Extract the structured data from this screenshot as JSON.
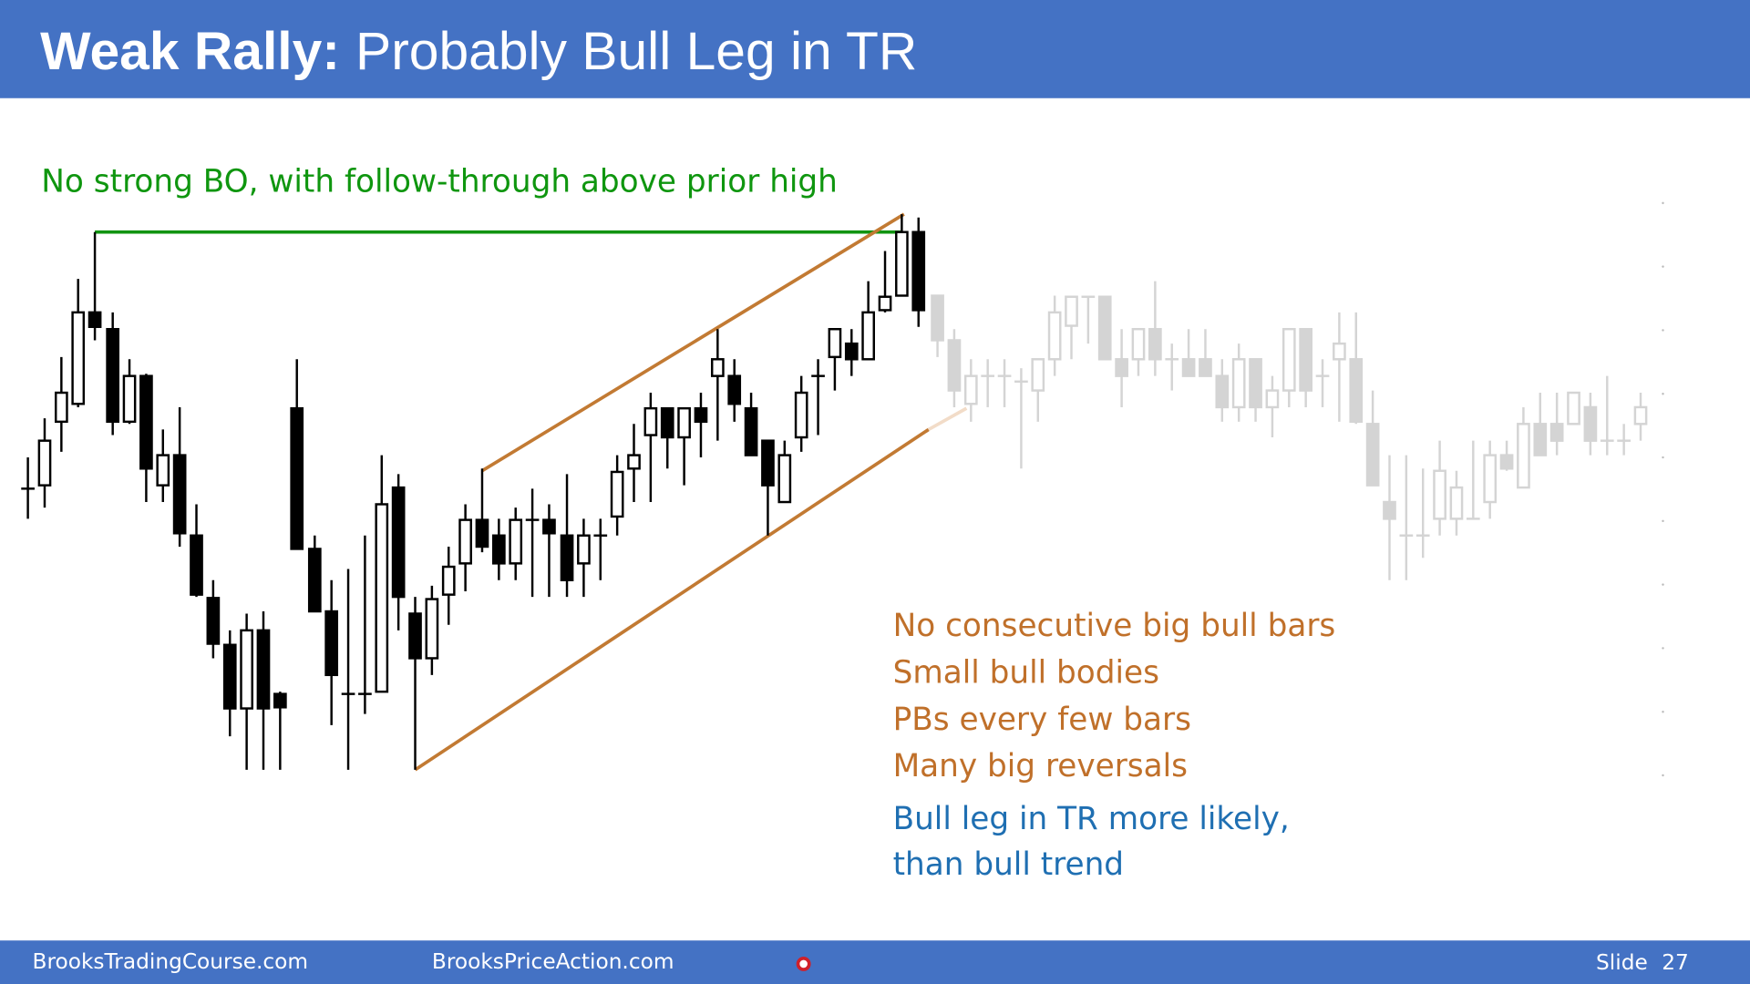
{
  "header": {
    "title_bold": "Weak Rally:",
    "title_rest": "Probably Bull Leg in TR"
  },
  "annotation": "No strong BO, with follow-through above prior high",
  "bullets": [
    "No consecutive big bull bars",
    "Small bull bodies",
    "PBs every few bars",
    "Many big reversals"
  ],
  "conclusion": [
    "Bull leg in TR more likely,",
    "than bull trend"
  ],
  "footer": {
    "left": "BrooksTradingCourse.com",
    "center": "BrooksPriceAction.com",
    "slide_label": "Slide",
    "slide_number": 27
  }
}
